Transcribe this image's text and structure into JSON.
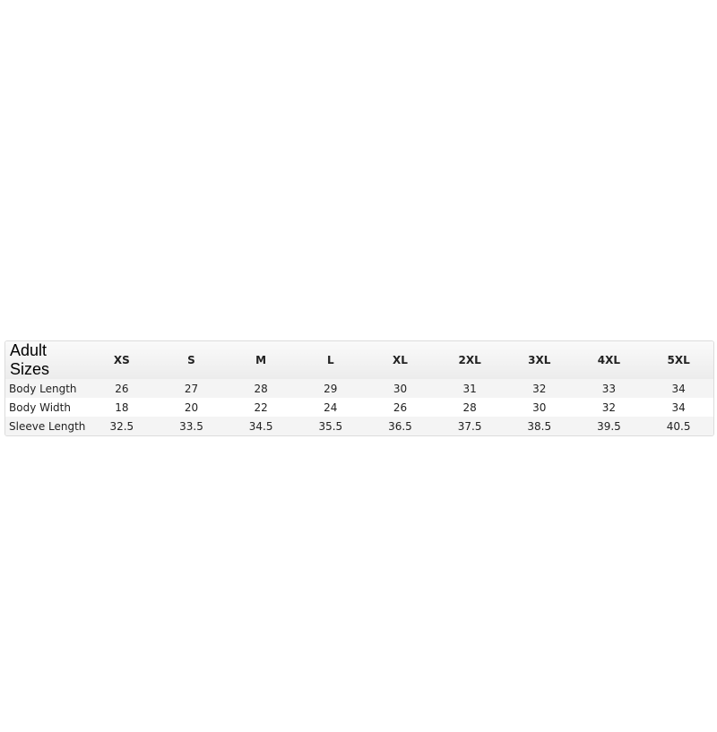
{
  "table": {
    "title": "Adult Sizes",
    "sizes": [
      "XS",
      "S",
      "M",
      "L",
      "XL",
      "2XL",
      "3XL",
      "4XL",
      "5XL"
    ],
    "rows": [
      {
        "label": "Body Length",
        "values": [
          "26",
          "27",
          "28",
          "29",
          "30",
          "31",
          "32",
          "33",
          "34"
        ]
      },
      {
        "label": "Body Width",
        "values": [
          "18",
          "20",
          "22",
          "24",
          "26",
          "28",
          "30",
          "32",
          "34"
        ]
      },
      {
        "label": "Sleeve Length",
        "values": [
          "32.5",
          "33.5",
          "34.5",
          "35.5",
          "36.5",
          "37.5",
          "38.5",
          "39.5",
          "40.5"
        ]
      }
    ]
  }
}
